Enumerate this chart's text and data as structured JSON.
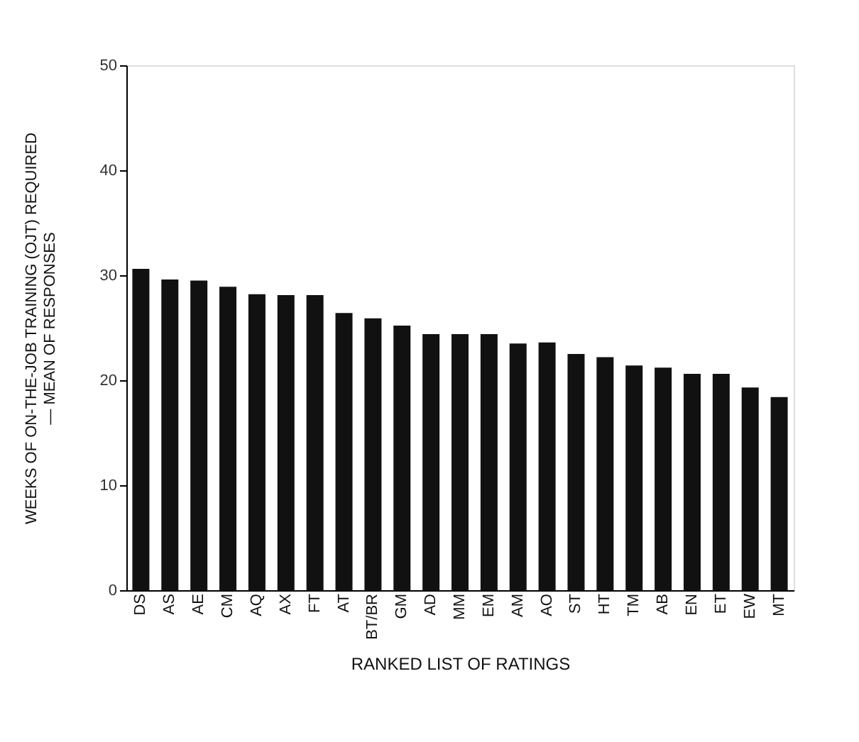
{
  "chart_data": {
    "type": "bar",
    "xlabel": "RANKED LIST OF RATINGS",
    "ylabel": "WEEKS OF ON-THE-JOB TRAINING (OJT) REQUIRED — MEAN OF RESPONSES",
    "categories": [
      "DS",
      "AS",
      "AE",
      "CM",
      "AQ",
      "AX",
      "FT",
      "AT",
      "BT/BR",
      "GM",
      "AD",
      "MM",
      "EM",
      "AM",
      "AO",
      "ST",
      "HT",
      "TM",
      "AB",
      "EN",
      "ET",
      "EW",
      "MT"
    ],
    "values": [
      30.6,
      29.6,
      29.5,
      28.9,
      28.2,
      28.1,
      28.1,
      26.4,
      25.9,
      25.2,
      24.4,
      24.4,
      24.4,
      23.5,
      23.6,
      22.5,
      22.2,
      21.4,
      21.2,
      20.6,
      20.6,
      19.3,
      18.4
    ],
    "color": "#111111",
    "ylim": [
      0,
      50
    ],
    "yticks": [
      0,
      10,
      20,
      30,
      40,
      50
    ],
    "grid": false
  }
}
